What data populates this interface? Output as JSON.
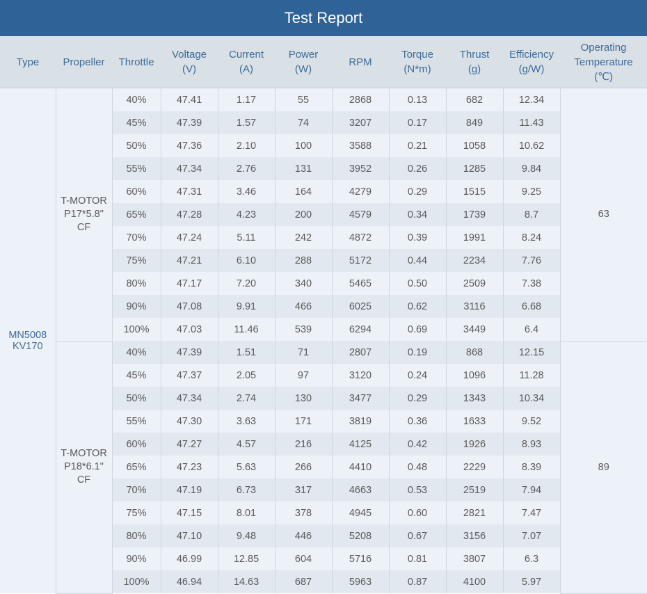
{
  "title": "Test Report",
  "headers": [
    {
      "l1": "Type",
      "l2": ""
    },
    {
      "l1": "Propeller",
      "l2": ""
    },
    {
      "l1": "Throttle",
      "l2": ""
    },
    {
      "l1": "Voltage",
      "l2": "(V)"
    },
    {
      "l1": "Current",
      "l2": "(A)"
    },
    {
      "l1": "Power",
      "l2": "(W)"
    },
    {
      "l1": "RPM",
      "l2": ""
    },
    {
      "l1": "Torque",
      "l2": "(N*m)"
    },
    {
      "l1": "Thrust",
      "l2": "(g)"
    },
    {
      "l1": "Efficiency",
      "l2": "(g/W)"
    },
    {
      "l1": "Operating Temperature",
      "l2": "(℃)"
    }
  ],
  "type": {
    "l1": "MN5008",
    "l2": "KV170"
  },
  "groups": [
    {
      "propeller": {
        "l1": "T-MOTOR",
        "l2": "P17*5.8\"",
        "l3": "CF"
      },
      "temperature": "63",
      "rows": [
        [
          "40%",
          "47.41",
          "1.17",
          "55",
          "2868",
          "0.13",
          "682",
          "12.34"
        ],
        [
          "45%",
          "47.39",
          "1.57",
          "74",
          "3207",
          "0.17",
          "849",
          "11.43"
        ],
        [
          "50%",
          "47.36",
          "2.10",
          "100",
          "3588",
          "0.21",
          "1058",
          "10.62"
        ],
        [
          "55%",
          "47.34",
          "2.76",
          "131",
          "3952",
          "0.26",
          "1285",
          "9.84"
        ],
        [
          "60%",
          "47.31",
          "3.46",
          "164",
          "4279",
          "0.29",
          "1515",
          "9.25"
        ],
        [
          "65%",
          "47.28",
          "4.23",
          "200",
          "4579",
          "0.34",
          "1739",
          "8.7"
        ],
        [
          "70%",
          "47.24",
          "5.11",
          "242",
          "4872",
          "0.39",
          "1991",
          "8.24"
        ],
        [
          "75%",
          "47.21",
          "6.10",
          "288",
          "5172",
          "0.44",
          "2234",
          "7.76"
        ],
        [
          "80%",
          "47.17",
          "7.20",
          "340",
          "5465",
          "0.50",
          "2509",
          "7.38"
        ],
        [
          "90%",
          "47.08",
          "9.91",
          "466",
          "6025",
          "0.62",
          "3116",
          "6.68"
        ],
        [
          "100%",
          "47.03",
          "11.46",
          "539",
          "6294",
          "0.69",
          "3449",
          "6.4"
        ]
      ]
    },
    {
      "propeller": {
        "l1": "T-MOTOR",
        "l2": "P18*6.1\"",
        "l3": "CF"
      },
      "temperature": "89",
      "rows": [
        [
          "40%",
          "47.39",
          "1.51",
          "71",
          "2807",
          "0.19",
          "868",
          "12.15"
        ],
        [
          "45%",
          "47.37",
          "2.05",
          "97",
          "3120",
          "0.24",
          "1096",
          "11.28"
        ],
        [
          "50%",
          "47.34",
          "2.74",
          "130",
          "3477",
          "0.29",
          "1343",
          "10.34"
        ],
        [
          "55%",
          "47.30",
          "3.63",
          "171",
          "3819",
          "0.36",
          "1633",
          "9.52"
        ],
        [
          "60%",
          "47.27",
          "4.57",
          "216",
          "4125",
          "0.42",
          "1926",
          "8.93"
        ],
        [
          "65%",
          "47.23",
          "5.63",
          "266",
          "4410",
          "0.48",
          "2229",
          "8.39"
        ],
        [
          "70%",
          "47.19",
          "6.73",
          "317",
          "4663",
          "0.53",
          "2519",
          "7.94"
        ],
        [
          "75%",
          "47.15",
          "8.01",
          "378",
          "4945",
          "0.60",
          "2821",
          "7.47"
        ],
        [
          "80%",
          "47.10",
          "9.48",
          "446",
          "5208",
          "0.67",
          "3156",
          "7.07"
        ],
        [
          "90%",
          "46.99",
          "12.85",
          "604",
          "5716",
          "0.81",
          "3807",
          "6.3"
        ],
        [
          "100%",
          "46.94",
          "14.63",
          "687",
          "5963",
          "0.87",
          "4100",
          "5.97"
        ]
      ]
    }
  ]
}
